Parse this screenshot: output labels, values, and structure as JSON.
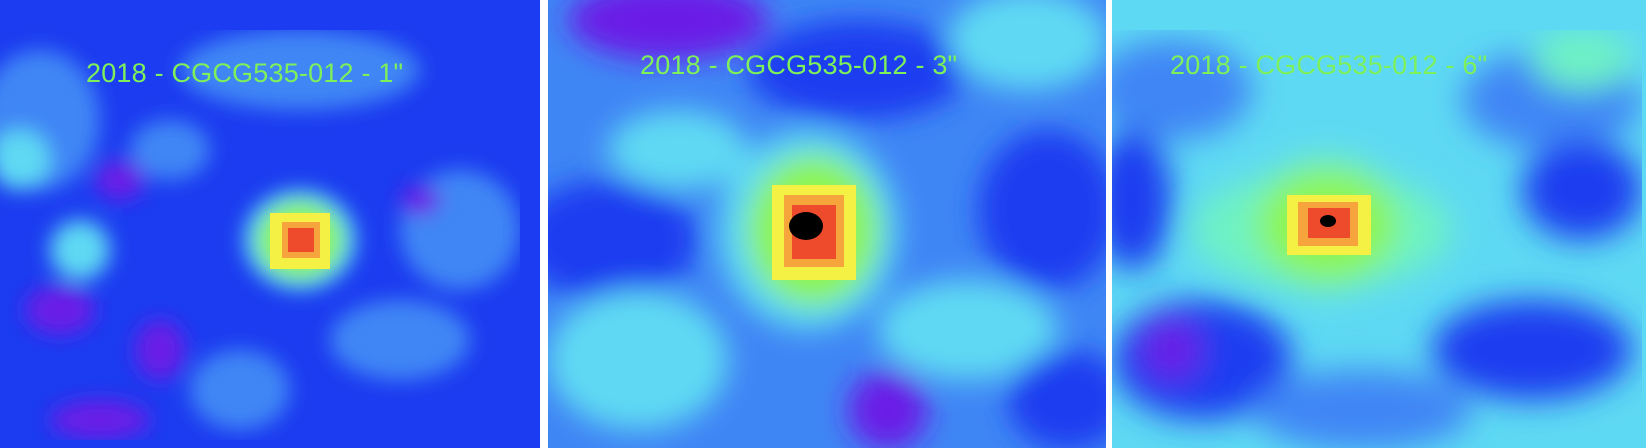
{
  "panels": [
    {
      "caption": "2018 - CGCG535-012 - 1\""
    },
    {
      "caption": "2018 - CGCG535-012 - 3\""
    },
    {
      "caption": "2018 - CGCG535-012 - 6\""
    }
  ],
  "colors": {
    "background": "#ffffff",
    "caption": "#7ef05a",
    "colormap": [
      "#6a1ee6",
      "#1b3cf0",
      "#3f86f5",
      "#5ed9f3",
      "#6ef2c4",
      "#8ef54f",
      "#f4f044",
      "#f6a43c",
      "#ee4a2c",
      "#000000"
    ]
  }
}
